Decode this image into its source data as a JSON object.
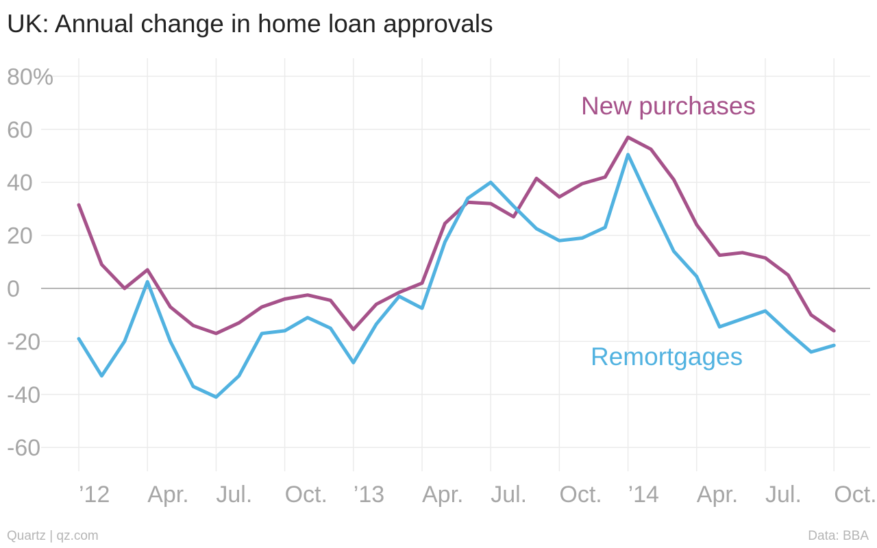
{
  "title": "UK: Annual change in home loan approvals",
  "footer": {
    "source_left": "Quartz | qz.com",
    "source_right": "Data: BBA"
  },
  "colors": {
    "new_purchases": "#a6528a",
    "remortgages": "#51b2e0",
    "grid": "#ebebeb",
    "zero_line": "#a8a8a8",
    "tick_text": "#a6a6a6"
  },
  "chart_data": {
    "type": "line",
    "title": "UK: Annual change in home loan approvals",
    "xlabel": "",
    "ylabel": "",
    "ylim": [
      -70,
      85
    ],
    "yticks": [
      80,
      60,
      40,
      20,
      0,
      -20,
      -40,
      -60
    ],
    "ytick_labels": [
      "80%",
      "60",
      "40",
      "20",
      "0",
      "-20",
      "-40",
      "-60"
    ],
    "grid": true,
    "x": [
      "2012-01",
      "2012-02",
      "2012-03",
      "2012-04",
      "2012-05",
      "2012-06",
      "2012-07",
      "2012-08",
      "2012-09",
      "2012-10",
      "2012-11",
      "2012-12",
      "2013-01",
      "2013-02",
      "2013-03",
      "2013-04",
      "2013-05",
      "2013-06",
      "2013-07",
      "2013-08",
      "2013-09",
      "2013-10",
      "2013-11",
      "2013-12",
      "2014-01",
      "2014-02",
      "2014-03",
      "2014-04",
      "2014-05",
      "2014-06",
      "2014-07",
      "2014-08",
      "2014-09",
      "2014-10"
    ],
    "xtick_labels": [
      "’12",
      "Apr.",
      "Jul.",
      "Oct.",
      "’13",
      "Apr.",
      "Jul.",
      "Oct.",
      "’14",
      "Apr.",
      "Jul.",
      "Oct."
    ],
    "series": [
      {
        "name": "New purchases",
        "values": [
          31.5,
          9,
          0,
          7,
          -7,
          -14,
          -17,
          -13,
          -7,
          -4,
          -2.5,
          -4.5,
          -15.5,
          -6,
          -1.5,
          2,
          24.5,
          32.5,
          32,
          27,
          41.5,
          34.5,
          39.5,
          42,
          57,
          52.5,
          41,
          24,
          12.5,
          13.5,
          11.5,
          5,
          -10,
          -16
        ]
      },
      {
        "name": "Remortgages",
        "values": [
          -19,
          -33,
          -20,
          2.5,
          -20,
          -37,
          -41,
          -33,
          -17,
          -16,
          -11,
          -15,
          -28,
          -13.5,
          -3,
          -7.5,
          17.5,
          34,
          40,
          31,
          22.5,
          18,
          19,
          23,
          50.5,
          32,
          14,
          4.5,
          -14.5,
          -11.5,
          -8.5,
          -16.5,
          -24,
          -21.5
        ]
      }
    ],
    "annotations": [
      "New purchases",
      "Remortgages"
    ]
  }
}
